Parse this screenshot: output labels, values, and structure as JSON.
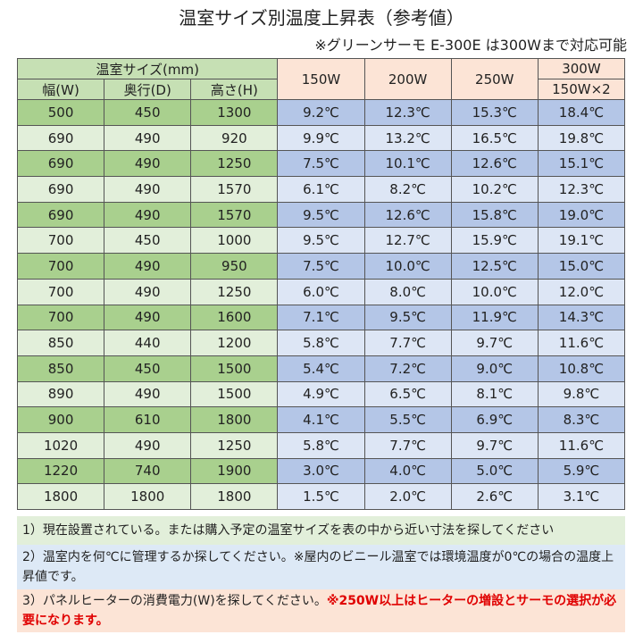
{
  "header": {
    "title": "温室サイズ別温度上昇表（参考値）",
    "subtitle": "※グリーンサーモ E-300E は300Wまで対応可能"
  },
  "table": {
    "size_group": "温室サイズ(mm)",
    "size_columns": [
      "幅(W)",
      "奥行(D)",
      "高さ(H)"
    ],
    "watt_columns": [
      "150W",
      "200W",
      "250W",
      "300W"
    ],
    "watt_sub": "150W×2",
    "rows": [
      [
        "500",
        "450",
        "1300",
        "9.2℃",
        "12.3℃",
        "15.3℃",
        "18.4℃"
      ],
      [
        "690",
        "490",
        "920",
        "9.9℃",
        "13.2℃",
        "16.5℃",
        "19.8℃"
      ],
      [
        "690",
        "490",
        "1250",
        "7.5℃",
        "10.1℃",
        "12.6℃",
        "15.1℃"
      ],
      [
        "690",
        "490",
        "1570",
        "6.1℃",
        "8.2℃",
        "10.2℃",
        "12.3℃"
      ],
      [
        "690",
        "490",
        "1570",
        "9.5℃",
        "12.6℃",
        "15.8℃",
        "19.0℃"
      ],
      [
        "700",
        "450",
        "1000",
        "9.5℃",
        "12.7℃",
        "15.9℃",
        "19.1℃"
      ],
      [
        "700",
        "490",
        "950",
        "7.5℃",
        "10.0℃",
        "12.5℃",
        "15.0℃"
      ],
      [
        "700",
        "490",
        "1250",
        "6.0℃",
        "8.0℃",
        "10.0℃",
        "12.0℃"
      ],
      [
        "700",
        "490",
        "1600",
        "7.1℃",
        "9.5℃",
        "11.9℃",
        "14.3℃"
      ],
      [
        "850",
        "440",
        "1200",
        "5.8℃",
        "7.7℃",
        "9.7℃",
        "11.6℃"
      ],
      [
        "850",
        "450",
        "1500",
        "5.4℃",
        "7.2℃",
        "9.0℃",
        "10.8℃"
      ],
      [
        "890",
        "490",
        "1500",
        "4.9℃",
        "6.5℃",
        "8.1℃",
        "9.8℃"
      ],
      [
        "900",
        "610",
        "1800",
        "4.1℃",
        "5.5℃",
        "6.9℃",
        "8.3℃"
      ],
      [
        "1020",
        "490",
        "1250",
        "5.8℃",
        "7.7℃",
        "9.7℃",
        "11.6℃"
      ],
      [
        "1220",
        "740",
        "1900",
        "3.0℃",
        "4.0℃",
        "5.0℃",
        "5.9℃"
      ],
      [
        "1800",
        "1800",
        "1800",
        "1.5℃",
        "2.0℃",
        "2.6℃",
        "3.1℃"
      ]
    ]
  },
  "notes": {
    "note1": "1）現在設置されている。または購入予定の温室サイズを表の中から近い寸法を探してください",
    "note2": "2）温室内を何℃に管理するか探してください。※屋内のビニール温室では環境温度が0℃の場合の温度上昇値です。",
    "note3": "3）パネルヒーターの消費電力(W)を探してください。",
    "note3_warning": "※250W以上はヒーターの増設とサーモの選択が必要になります。"
  }
}
